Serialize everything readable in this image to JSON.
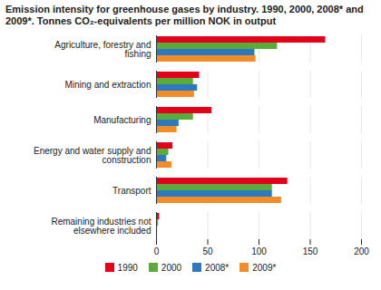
{
  "chart_data": {
    "type": "bar",
    "orientation": "horizontal",
    "title": "Emission intensity for greenhouse gases by industry. 1990, 2000, 2008* and 2009*. Tonnes CO₂-equivalents per million NOK in output",
    "categories": [
      "Agriculture, forestry and fishing",
      "Mining and extraction",
      "Manufacturing",
      "Energy and water supply and construction",
      "Transport",
      "Remaining industries not elsewhere included"
    ],
    "series": [
      {
        "name": "1990",
        "color": "#e3001b",
        "values": [
          165,
          42,
          54,
          16,
          128,
          3
        ]
      },
      {
        "name": "2000",
        "color": "#5aab3c",
        "values": [
          118,
          36,
          36,
          12,
          113,
          2
        ]
      },
      {
        "name": "2008*",
        "color": "#2e78c0",
        "values": [
          96,
          40,
          22,
          10,
          113,
          1
        ]
      },
      {
        "name": "2009*",
        "color": "#f28c28",
        "values": [
          97,
          37,
          20,
          15,
          122,
          1
        ]
      }
    ],
    "xlim": [
      0,
      200
    ],
    "xticks": [
      0,
      50,
      100,
      150,
      200
    ],
    "grid": true,
    "legend": "bottom"
  }
}
